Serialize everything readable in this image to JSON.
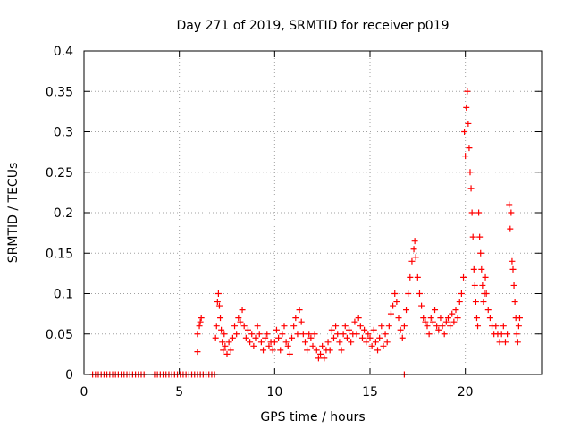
{
  "chart_data": {
    "type": "scatter",
    "title": "Day 271 of 2019, SRMTID for receiver p019",
    "xlabel": "GPS time / hours",
    "ylabel": "SRMTID / TECUs",
    "xlim": [
      0,
      24
    ],
    "ylim": [
      0,
      0.4
    ],
    "grid": true,
    "marker": "+",
    "color": "#ff0000",
    "x_ticks": [
      {
        "value": 0,
        "label": "0"
      },
      {
        "value": 5,
        "label": "5"
      },
      {
        "value": 10,
        "label": "10"
      },
      {
        "value": 15,
        "label": "15"
      },
      {
        "value": 20,
        "label": "20"
      }
    ],
    "y_ticks": [
      {
        "value": 0,
        "label": "0"
      },
      {
        "value": 0.05,
        "label": "0.05"
      },
      {
        "value": 0.1,
        "label": "0.1"
      },
      {
        "value": 0.15,
        "label": "0.15"
      },
      {
        "value": 0.2,
        "label": "0.2"
      },
      {
        "value": 0.25,
        "label": "0.25"
      },
      {
        "value": 0.3,
        "label": "0.3"
      },
      {
        "value": 0.35,
        "label": "0.35"
      },
      {
        "value": 0.4,
        "label": "0.4"
      }
    ],
    "series": [
      {
        "name": "SRMTID",
        "points": [
          [
            0.45,
            0
          ],
          [
            0.6,
            0
          ],
          [
            0.75,
            0
          ],
          [
            0.9,
            0
          ],
          [
            1.05,
            0
          ],
          [
            1.2,
            0
          ],
          [
            1.35,
            0
          ],
          [
            1.5,
            0
          ],
          [
            1.65,
            0
          ],
          [
            1.8,
            0
          ],
          [
            1.95,
            0
          ],
          [
            2.1,
            0
          ],
          [
            2.25,
            0
          ],
          [
            2.4,
            0
          ],
          [
            2.55,
            0
          ],
          [
            2.7,
            0
          ],
          [
            2.85,
            0
          ],
          [
            3.0,
            0
          ],
          [
            3.15,
            0
          ],
          [
            3.7,
            0
          ],
          [
            3.85,
            0
          ],
          [
            4.0,
            0
          ],
          [
            4.15,
            0
          ],
          [
            4.3,
            0
          ],
          [
            4.45,
            0
          ],
          [
            4.6,
            0
          ],
          [
            4.75,
            0
          ],
          [
            4.9,
            0
          ],
          [
            5.05,
            0
          ],
          [
            5.2,
            0
          ],
          [
            5.35,
            0
          ],
          [
            5.5,
            0
          ],
          [
            5.65,
            0
          ],
          [
            5.8,
            0
          ],
          [
            5.95,
            0
          ],
          [
            6.1,
            0
          ],
          [
            6.25,
            0
          ],
          [
            6.4,
            0
          ],
          [
            6.55,
            0
          ],
          [
            6.7,
            0
          ],
          [
            6.85,
            0
          ],
          [
            16.8,
            0
          ],
          [
            5.95,
            0.028
          ],
          [
            5.95,
            0.05
          ],
          [
            6.05,
            0.06
          ],
          [
            6.1,
            0.065
          ],
          [
            6.15,
            0.07
          ],
          [
            6.9,
            0.045
          ],
          [
            6.95,
            0.06
          ],
          [
            7.0,
            0.09
          ],
          [
            7.05,
            0.1
          ],
          [
            7.1,
            0.085
          ],
          [
            7.15,
            0.07
          ],
          [
            7.2,
            0.055
          ],
          [
            7.25,
            0.04
          ],
          [
            7.3,
            0.03
          ],
          [
            7.35,
            0.05
          ],
          [
            7.4,
            0.035
          ],
          [
            7.5,
            0.025
          ],
          [
            7.6,
            0.04
          ],
          [
            7.7,
            0.03
          ],
          [
            7.8,
            0.045
          ],
          [
            7.9,
            0.06
          ],
          [
            8.0,
            0.05
          ],
          [
            8.1,
            0.07
          ],
          [
            8.2,
            0.065
          ],
          [
            8.3,
            0.08
          ],
          [
            8.4,
            0.06
          ],
          [
            8.5,
            0.045
          ],
          [
            8.6,
            0.055
          ],
          [
            8.7,
            0.04
          ],
          [
            8.8,
            0.05
          ],
          [
            8.9,
            0.035
          ],
          [
            9.0,
            0.045
          ],
          [
            9.1,
            0.06
          ],
          [
            9.2,
            0.05
          ],
          [
            9.3,
            0.04
          ],
          [
            9.4,
            0.03
          ],
          [
            9.5,
            0.045
          ],
          [
            9.6,
            0.05
          ],
          [
            9.7,
            0.035
          ],
          [
            9.8,
            0.04
          ],
          [
            9.9,
            0.03
          ],
          [
            10.0,
            0.04
          ],
          [
            10.1,
            0.055
          ],
          [
            10.2,
            0.045
          ],
          [
            10.3,
            0.03
          ],
          [
            10.4,
            0.05
          ],
          [
            10.5,
            0.06
          ],
          [
            10.6,
            0.04
          ],
          [
            10.7,
            0.035
          ],
          [
            10.8,
            0.025
          ],
          [
            10.9,
            0.045
          ],
          [
            11.0,
            0.06
          ],
          [
            11.1,
            0.07
          ],
          [
            11.2,
            0.05
          ],
          [
            11.3,
            0.08
          ],
          [
            11.4,
            0.065
          ],
          [
            11.5,
            0.05
          ],
          [
            11.6,
            0.04
          ],
          [
            11.7,
            0.03
          ],
          [
            11.8,
            0.05
          ],
          [
            11.9,
            0.045
          ],
          [
            12.0,
            0.035
          ],
          [
            12.1,
            0.05
          ],
          [
            12.2,
            0.03
          ],
          [
            12.3,
            0.02
          ],
          [
            12.4,
            0.025
          ],
          [
            12.5,
            0.035
          ],
          [
            12.6,
            0.02
          ],
          [
            12.7,
            0.03
          ],
          [
            12.8,
            0.04
          ],
          [
            12.9,
            0.03
          ],
          [
            13.0,
            0.055
          ],
          [
            13.1,
            0.045
          ],
          [
            13.2,
            0.06
          ],
          [
            13.3,
            0.05
          ],
          [
            13.4,
            0.04
          ],
          [
            13.5,
            0.03
          ],
          [
            13.6,
            0.05
          ],
          [
            13.7,
            0.06
          ],
          [
            13.8,
            0.045
          ],
          [
            13.9,
            0.055
          ],
          [
            14.0,
            0.04
          ],
          [
            14.1,
            0.05
          ],
          [
            14.2,
            0.065
          ],
          [
            14.3,
            0.05
          ],
          [
            14.4,
            0.07
          ],
          [
            14.5,
            0.06
          ],
          [
            14.6,
            0.045
          ],
          [
            14.7,
            0.055
          ],
          [
            14.8,
            0.04
          ],
          [
            14.9,
            0.05
          ],
          [
            15.0,
            0.045
          ],
          [
            15.1,
            0.035
          ],
          [
            15.2,
            0.055
          ],
          [
            15.3,
            0.04
          ],
          [
            15.4,
            0.03
          ],
          [
            15.5,
            0.045
          ],
          [
            15.6,
            0.06
          ],
          [
            15.7,
            0.035
          ],
          [
            15.8,
            0.05
          ],
          [
            15.9,
            0.04
          ],
          [
            16.0,
            0.06
          ],
          [
            16.1,
            0.075
          ],
          [
            16.2,
            0.085
          ],
          [
            16.3,
            0.1
          ],
          [
            16.4,
            0.09
          ],
          [
            16.5,
            0.07
          ],
          [
            16.6,
            0.055
          ],
          [
            16.7,
            0.045
          ],
          [
            16.8,
            0.06
          ],
          [
            16.9,
            0.08
          ],
          [
            17.0,
            0.1
          ],
          [
            17.1,
            0.12
          ],
          [
            17.2,
            0.14
          ],
          [
            17.3,
            0.155
          ],
          [
            17.35,
            0.165
          ],
          [
            17.4,
            0.145
          ],
          [
            17.5,
            0.12
          ],
          [
            17.6,
            0.1
          ],
          [
            17.7,
            0.085
          ],
          [
            17.8,
            0.07
          ],
          [
            17.9,
            0.065
          ],
          [
            18.0,
            0.06
          ],
          [
            18.1,
            0.05
          ],
          [
            18.2,
            0.07
          ],
          [
            18.3,
            0.065
          ],
          [
            18.4,
            0.08
          ],
          [
            18.5,
            0.06
          ],
          [
            18.6,
            0.055
          ],
          [
            18.7,
            0.07
          ],
          [
            18.8,
            0.06
          ],
          [
            18.9,
            0.05
          ],
          [
            19.0,
            0.065
          ],
          [
            19.1,
            0.07
          ],
          [
            19.2,
            0.06
          ],
          [
            19.3,
            0.075
          ],
          [
            19.4,
            0.065
          ],
          [
            19.5,
            0.08
          ],
          [
            19.6,
            0.07
          ],
          [
            19.7,
            0.09
          ],
          [
            19.8,
            0.1
          ],
          [
            19.9,
            0.12
          ],
          [
            19.95,
            0.3
          ],
          [
            20.0,
            0.27
          ],
          [
            20.05,
            0.33
          ],
          [
            20.1,
            0.35
          ],
          [
            20.15,
            0.31
          ],
          [
            20.2,
            0.28
          ],
          [
            20.25,
            0.25
          ],
          [
            20.3,
            0.23
          ],
          [
            20.35,
            0.2
          ],
          [
            20.4,
            0.17
          ],
          [
            20.45,
            0.13
          ],
          [
            20.5,
            0.11
          ],
          [
            20.55,
            0.09
          ],
          [
            20.6,
            0.07
          ],
          [
            20.65,
            0.06
          ],
          [
            20.7,
            0.2
          ],
          [
            20.75,
            0.17
          ],
          [
            20.8,
            0.15
          ],
          [
            20.85,
            0.13
          ],
          [
            20.9,
            0.11
          ],
          [
            20.95,
            0.09
          ],
          [
            21.0,
            0.1
          ],
          [
            21.05,
            0.12
          ],
          [
            21.1,
            0.1
          ],
          [
            21.2,
            0.08
          ],
          [
            21.3,
            0.07
          ],
          [
            21.4,
            0.06
          ],
          [
            21.5,
            0.05
          ],
          [
            21.6,
            0.06
          ],
          [
            21.7,
            0.05
          ],
          [
            21.8,
            0.04
          ],
          [
            21.9,
            0.05
          ],
          [
            22.0,
            0.06
          ],
          [
            22.1,
            0.04
          ],
          [
            22.2,
            0.05
          ],
          [
            22.3,
            0.21
          ],
          [
            22.35,
            0.18
          ],
          [
            22.4,
            0.2
          ],
          [
            22.45,
            0.14
          ],
          [
            22.5,
            0.13
          ],
          [
            22.55,
            0.11
          ],
          [
            22.6,
            0.09
          ],
          [
            22.65,
            0.07
          ],
          [
            22.7,
            0.05
          ],
          [
            22.75,
            0.04
          ],
          [
            22.8,
            0.06
          ],
          [
            22.85,
            0.07
          ]
        ]
      }
    ]
  }
}
